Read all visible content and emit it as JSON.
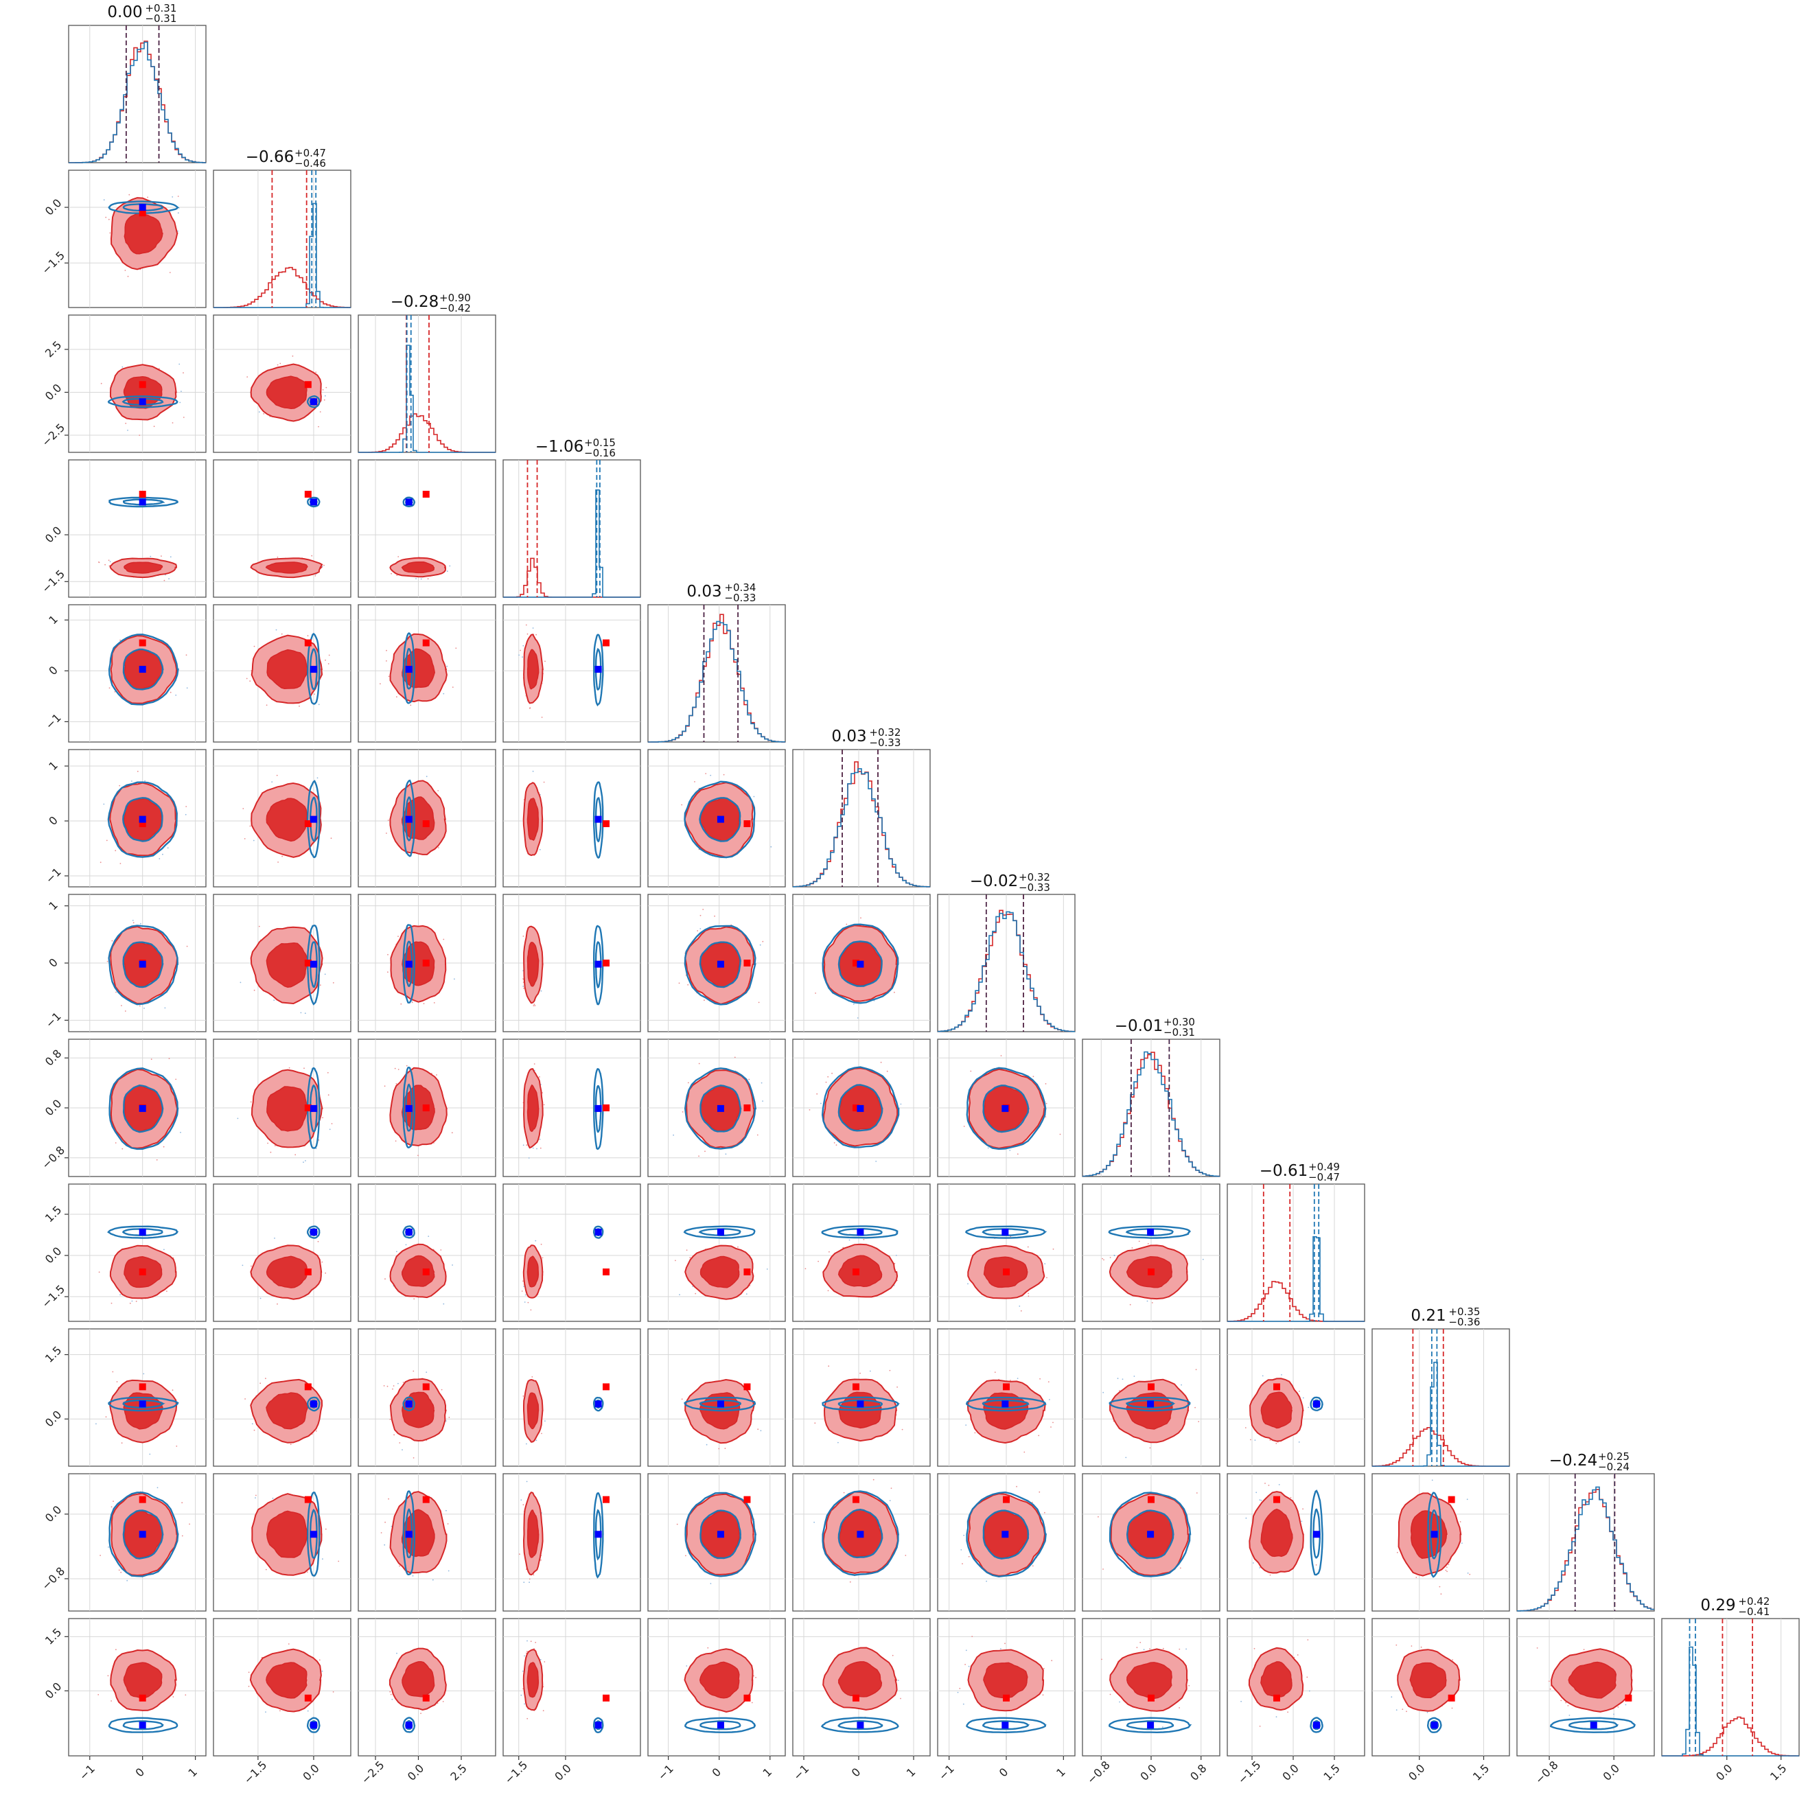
{
  "chart_data": {
    "type": "corner",
    "n_params": 12,
    "titles": [
      {
        "value": "0.00",
        "plus": "+0.31",
        "minus": "−0.31"
      },
      {
        "value": "−0.66",
        "plus": "+0.47",
        "minus": "−0.46"
      },
      {
        "value": "−0.28",
        "plus": "+0.90",
        "minus": "−0.42"
      },
      {
        "value": "−1.06",
        "plus": "+0.15",
        "minus": "−0.16"
      },
      {
        "value": "0.03",
        "plus": "+0.34",
        "minus": "−0.33"
      },
      {
        "value": "0.03",
        "plus": "+0.32",
        "minus": "−0.33"
      },
      {
        "value": "−0.02",
        "plus": "+0.32",
        "minus": "−0.33"
      },
      {
        "value": "−0.01",
        "plus": "+0.30",
        "minus": "−0.31"
      },
      {
        "value": "−0.61",
        "plus": "+0.49",
        "minus": "−0.47"
      },
      {
        "value": "0.21",
        "plus": "+0.35",
        "minus": "−0.36"
      },
      {
        "value": "−0.24",
        "plus": "+0.25",
        "minus": "−0.24"
      },
      {
        "value": "0.29",
        "plus": "+0.42",
        "minus": "−0.41"
      }
    ],
    "axis_ranges": [
      [
        -1.4,
        1.2
      ],
      [
        -2.7,
        1.0
      ],
      [
        -3.5,
        4.5
      ],
      [
        -2.0,
        2.4
      ],
      [
        -1.4,
        1.3
      ],
      [
        -1.2,
        1.3
      ],
      [
        -1.2,
        1.2
      ],
      [
        -1.1,
        1.1
      ],
      [
        -2.4,
        2.6
      ],
      [
        -1.1,
        2.1
      ],
      [
        -1.2,
        0.5
      ],
      [
        -1.8,
        2.0
      ]
    ],
    "ticks": [
      {
        "values": [
          -1,
          0,
          1
        ],
        "labels": [
          "−1",
          "0",
          "1"
        ]
      },
      {
        "values": [
          -1.5,
          0.0
        ],
        "labels": [
          "−1.5",
          "0.0"
        ]
      },
      {
        "values": [
          -2.5,
          0.0,
          2.5
        ],
        "labels": [
          "−2.5",
          "0.0",
          "2.5"
        ]
      },
      {
        "values": [
          -1.5,
          0.0
        ],
        "labels": [
          "−1.5",
          "0.0"
        ]
      },
      {
        "values": [
          -1,
          0,
          1
        ],
        "labels": [
          "−1",
          "0",
          "1"
        ]
      },
      {
        "values": [
          -1,
          0,
          1
        ],
        "labels": [
          "−1",
          "0",
          "1"
        ]
      },
      {
        "values": [
          -1,
          0,
          1
        ],
        "labels": [
          "−1",
          "0",
          "1"
        ]
      },
      {
        "values": [
          -0.8,
          0.0,
          0.8
        ],
        "labels": [
          "−0.8",
          "0.0",
          "0.8"
        ]
      },
      {
        "values": [
          -1.5,
          0.0,
          1.5
        ],
        "labels": [
          "−1.5",
          "0.0",
          "1.5"
        ]
      },
      {
        "values": [
          0.0,
          1.5
        ],
        "labels": [
          "0.0",
          "1.5"
        ]
      },
      {
        "values": [
          -0.8,
          0.0
        ],
        "labels": [
          "−0.8",
          "0.0"
        ]
      },
      {
        "values": [
          0.0,
          1.5
        ],
        "labels": [
          "0.0",
          "1.5"
        ]
      }
    ],
    "red_posterior": {
      "means": [
        0.0,
        -0.7,
        0.0,
        -1.05,
        0.03,
        0.03,
        -0.02,
        -0.01,
        -0.6,
        0.2,
        -0.25,
        0.3
      ],
      "stds": [
        0.31,
        0.47,
        0.8,
        0.15,
        0.33,
        0.33,
        0.33,
        0.31,
        0.48,
        0.36,
        0.25,
        0.42
      ],
      "quantiles_16_84": [
        [
          -0.31,
          0.31
        ],
        [
          -1.12,
          -0.19
        ],
        [
          -0.7,
          0.62
        ],
        [
          -1.22,
          -0.91
        ],
        [
          -0.3,
          0.37
        ],
        [
          -0.3,
          0.35
        ],
        [
          -0.35,
          0.3
        ],
        [
          -0.32,
          0.29
        ],
        [
          -1.08,
          -0.12
        ],
        [
          -0.15,
          0.56
        ],
        [
          -0.48,
          0.01
        ],
        [
          -0.12,
          0.71
        ]
      ]
    },
    "blue_posterior": {
      "means": [
        0.0,
        0.0,
        -0.55,
        1.05,
        0.03,
        0.03,
        -0.02,
        -0.01,
        0.85,
        0.35,
        -0.25,
        -0.95
      ],
      "stds": [
        0.31,
        0.06,
        0.12,
        0.05,
        0.33,
        0.33,
        0.33,
        0.31,
        0.08,
        0.06,
        0.25,
        0.08
      ],
      "quantiles_16_84": [
        [
          -0.31,
          0.31
        ],
        [
          -0.05,
          0.06
        ],
        [
          -0.67,
          -0.43
        ],
        [
          1.0,
          1.1
        ],
        [
          -0.3,
          0.37
        ],
        [
          -0.3,
          0.35
        ],
        [
          -0.35,
          0.3
        ],
        [
          -0.32,
          0.29
        ],
        [
          0.77,
          0.93
        ],
        [
          0.29,
          0.41
        ],
        [
          -0.48,
          0.01
        ],
        [
          -1.03,
          -0.87
        ]
      ]
    },
    "truth_red": [
      0.0,
      -0.15,
      0.45,
      1.3,
      0.55,
      -0.05,
      0.0,
      0.0,
      -0.6,
      0.75,
      0.18,
      -0.2
    ],
    "truth_blue": [
      0.0,
      0.0,
      -0.55,
      1.05,
      0.03,
      0.03,
      -0.02,
      -0.01,
      0.85,
      0.35,
      -0.25,
      -0.95
    ],
    "series_colors": {
      "red": "#d62728",
      "blue": "#1f77b4",
      "truth_red": "#ff0000",
      "truth_blue": "#0000ff"
    },
    "grid": true
  }
}
